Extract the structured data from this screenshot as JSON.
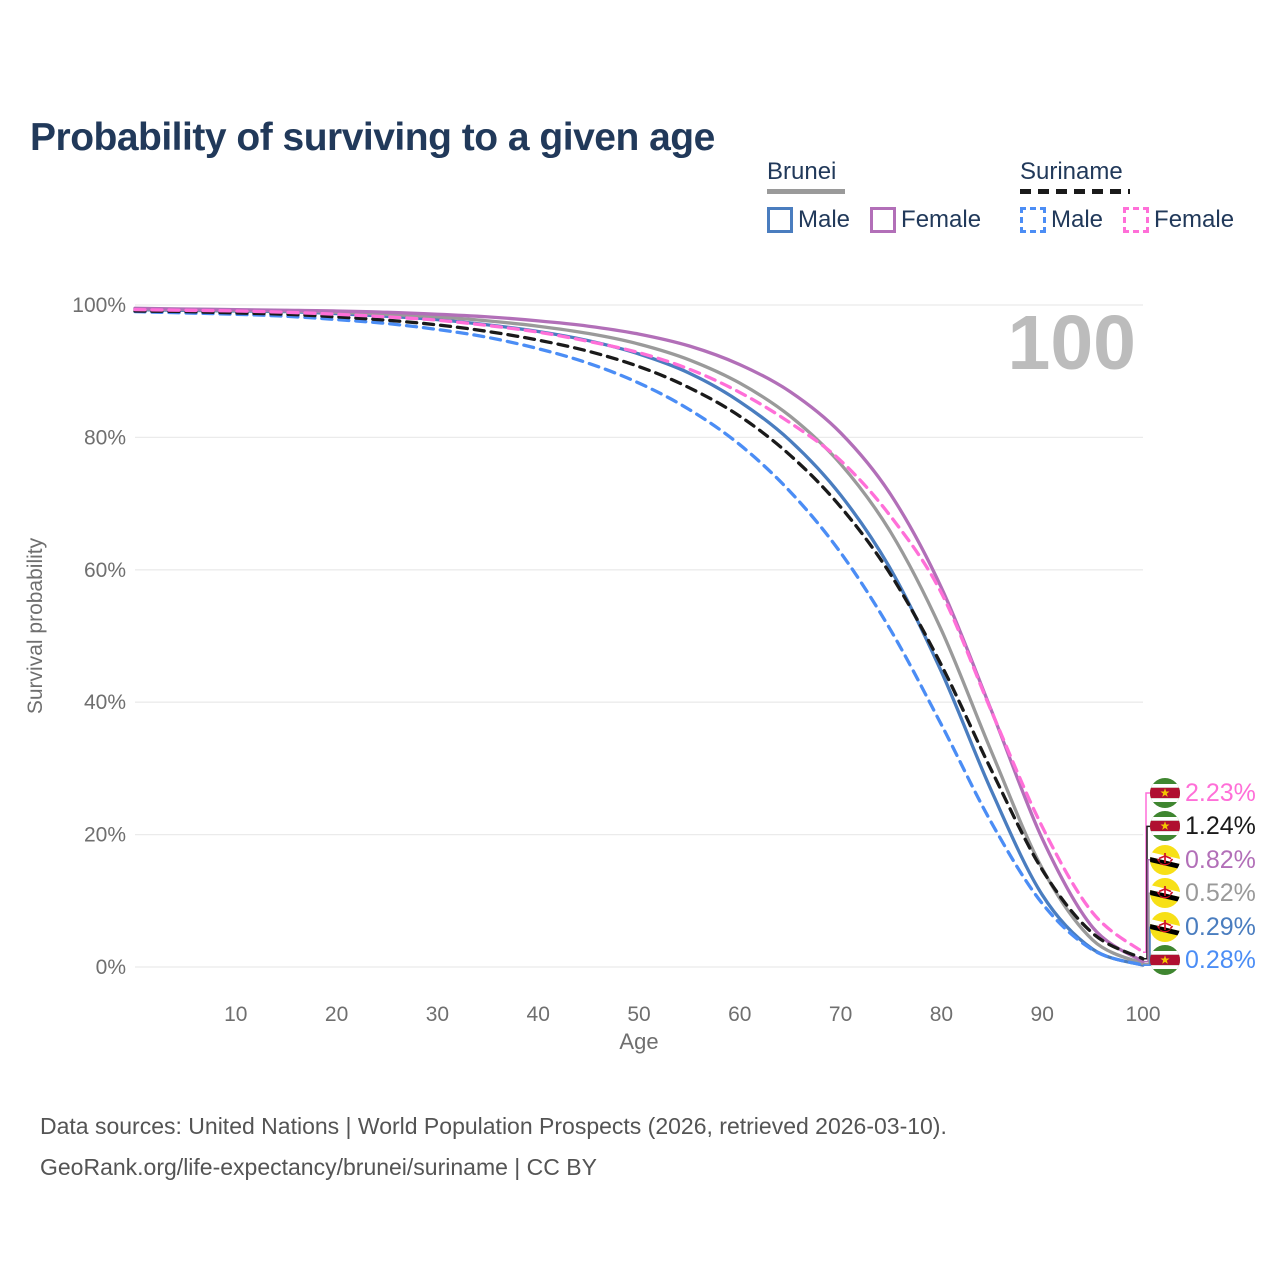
{
  "title": "Probability of surviving to a given age",
  "watermark": "100",
  "legend": {
    "groups": [
      {
        "name": "Brunei",
        "line_color": "#9a9a9a",
        "dashed": false,
        "items": [
          {
            "label": "Male",
            "color": "#4a7dbf"
          },
          {
            "label": "Female",
            "color": "#b26fb8"
          }
        ]
      },
      {
        "name": "Suriname",
        "line_color": "#1a1a1a",
        "dashed": true,
        "items": [
          {
            "label": "Male",
            "color": "#4b8df5"
          },
          {
            "label": "Female",
            "color": "#ff6fd8"
          }
        ]
      }
    ]
  },
  "chart_data": {
    "type": "line",
    "title": "Probability of surviving to a given age",
    "xlabel": "Age",
    "ylabel": "Survival probability",
    "xlim": [
      0,
      100
    ],
    "ylim": [
      0,
      100
    ],
    "grid": "horizontal",
    "x_ticks": [
      10,
      20,
      30,
      40,
      50,
      60,
      70,
      80,
      90,
      100
    ],
    "y_ticks": [
      0,
      20,
      40,
      60,
      80,
      100
    ],
    "y_tick_labels": [
      "0%",
      "20%",
      "40%",
      "60%",
      "80%",
      "100%"
    ],
    "ages": [
      0,
      5,
      10,
      15,
      20,
      25,
      30,
      35,
      40,
      45,
      50,
      55,
      60,
      65,
      70,
      75,
      80,
      85,
      90,
      95,
      100
    ],
    "series": [
      {
        "name": "Brunei Male",
        "country": "Brunei",
        "sex": "Male",
        "color": "#4a7dbf",
        "dashed": false,
        "flag": "brunei",
        "end_label": "0.29%",
        "values": [
          99.3,
          99.2,
          99.1,
          99.0,
          98.7,
          98.3,
          97.8,
          97.0,
          96.0,
          94.6,
          92.6,
          89.7,
          85.4,
          79.5,
          71.3,
          60.0,
          44.6,
          26.5,
          10.9,
          2.7,
          0.29
        ]
      },
      {
        "name": "Brunei",
        "country": "Brunei",
        "sex": "Both",
        "color": "#9a9a9a",
        "dashed": false,
        "flag": "brunei",
        "end_label": "0.52%",
        "values": [
          99.4,
          99.3,
          99.2,
          99.1,
          98.9,
          98.6,
          98.2,
          97.6,
          96.8,
          95.7,
          94.1,
          91.7,
          88.2,
          83.2,
          76.0,
          65.6,
          50.9,
          32.4,
          14.9,
          4.1,
          0.52
        ]
      },
      {
        "name": "Brunei Female",
        "country": "Brunei",
        "sex": "Female",
        "color": "#b26fb8",
        "dashed": false,
        "flag": "brunei",
        "end_label": "0.82%",
        "values": [
          99.5,
          99.4,
          99.3,
          99.2,
          99.1,
          98.9,
          98.6,
          98.2,
          97.6,
          96.8,
          95.6,
          93.8,
          91.0,
          86.9,
          80.7,
          71.3,
          57.3,
          38.6,
          19.4,
          6.0,
          0.82
        ]
      },
      {
        "name": "Suriname Male",
        "country": "Suriname",
        "sex": "Male",
        "color": "#4b8df5",
        "dashed": true,
        "flag": "suriname",
        "end_label": "0.28%",
        "values": [
          99.0,
          98.8,
          98.6,
          98.3,
          97.8,
          97.2,
          96.3,
          95.1,
          93.4,
          91.2,
          88.2,
          84.2,
          78.9,
          71.8,
          62.6,
          50.8,
          36.6,
          21.7,
          9.6,
          2.6,
          0.28
        ]
      },
      {
        "name": "Suriname",
        "country": "Suriname",
        "sex": "Both",
        "color": "#1a1a1a",
        "dashed": true,
        "flag": "suriname",
        "end_label": "1.24%",
        "values": [
          99.1,
          99.0,
          98.8,
          98.6,
          98.2,
          97.7,
          97.0,
          96.0,
          94.7,
          93.0,
          90.7,
          87.5,
          83.2,
          77.3,
          69.5,
          59.2,
          45.6,
          29.6,
          14.7,
          5.1,
          1.24
        ]
      },
      {
        "name": "Suriname Female",
        "country": "Suriname",
        "sex": "Female",
        "color": "#ff6fd8",
        "dashed": true,
        "flag": "suriname",
        "end_label": "2.23%",
        "values": [
          99.3,
          99.2,
          99.1,
          98.9,
          98.6,
          98.2,
          97.7,
          96.9,
          95.9,
          94.5,
          92.8,
          90.3,
          86.8,
          82.2,
          76.5,
          68.0,
          56.5,
          38.5,
          21.2,
          8.2,
          2.23
        ]
      }
    ],
    "legend_position": "top-right",
    "annotations": {
      "age_counter": "100"
    }
  },
  "footer": {
    "line1": "Data sources: United Nations | World Population Prospects (2026, retrieved 2026-03-10).",
    "line2": "GeoRank.org/life-expectancy/brunei/suriname | CC BY"
  },
  "colors": {
    "title_text": "#21395a",
    "axis_text": "#6f6f6f",
    "gridline": "#ebebeb",
    "watermark": "#bcbcbc",
    "footer_text": "#545454"
  }
}
